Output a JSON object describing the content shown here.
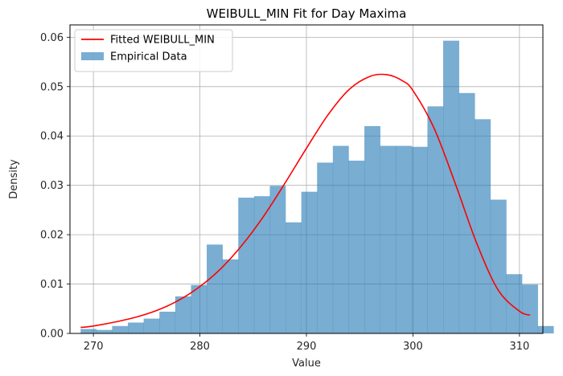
{
  "chart_data": {
    "type": "bar",
    "title": "WEIBULL_MIN Fit for Day Maxima",
    "xlabel": "Value",
    "ylabel": "Density",
    "xlim": [
      267.8,
      312.2
    ],
    "ylim": [
      0,
      0.0625
    ],
    "xticks": [
      270,
      280,
      290,
      300,
      310
    ],
    "yticks": [
      0.0,
      0.01,
      0.02,
      0.03,
      0.04,
      0.05,
      0.06
    ],
    "ytick_labels": [
      "0.00",
      "0.01",
      "0.02",
      "0.03",
      "0.04",
      "0.05",
      "0.06"
    ],
    "grid": true,
    "legend_placement": "top-left",
    "colors": {
      "histogram": "#1f77b4",
      "fit": "#ff0000",
      "grid": "#b0b0b0"
    },
    "histogram": {
      "name": "Empirical Data",
      "bin_start": 268.8,
      "bin_width": 1.48,
      "densities": [
        0.0009,
        0.0007,
        0.0015,
        0.0022,
        0.003,
        0.0044,
        0.0075,
        0.0098,
        0.018,
        0.015,
        0.0275,
        0.0278,
        0.0299,
        0.0225,
        0.0287,
        0.0346,
        0.038,
        0.035,
        0.042,
        0.038,
        0.038,
        0.0378,
        0.046,
        0.0593,
        0.0487,
        0.0434,
        0.0271,
        0.012,
        0.0099,
        0.0015
      ]
    },
    "fit_curve": {
      "name": "Fitted WEIBULL_MIN",
      "x": [
        268.8,
        270,
        272,
        274,
        276,
        278,
        280,
        282,
        284,
        286,
        288,
        290,
        292,
        294,
        296,
        297.6,
        299,
        300,
        302,
        304,
        306,
        308,
        310,
        311
      ],
      "y": [
        0.0012,
        0.0015,
        0.0023,
        0.0033,
        0.0047,
        0.0067,
        0.0095,
        0.0132,
        0.018,
        0.0238,
        0.0305,
        0.0375,
        0.0442,
        0.0494,
        0.0521,
        0.0524,
        0.0512,
        0.0492,
        0.0415,
        0.0302,
        0.0182,
        0.0088,
        0.0045,
        0.0037
      ]
    }
  }
}
